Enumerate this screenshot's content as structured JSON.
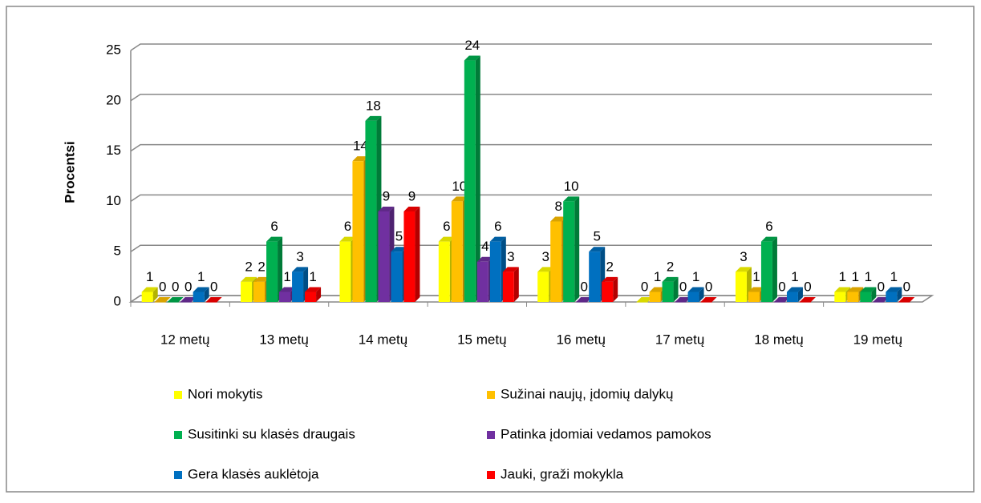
{
  "chart_data": {
    "type": "bar3d",
    "y_label": "Procentsi",
    "categories": [
      "12 metų",
      "13 metų",
      "14 metų",
      "15 metų",
      "16 metų",
      "17 metų",
      "18 metų",
      "19 metų"
    ],
    "series": [
      {
        "name": "Nori mokytis",
        "color": "#ffff00",
        "values": [
          1,
          2,
          6,
          6,
          3,
          0,
          3,
          1
        ]
      },
      {
        "name": "Sužinai naujų, įdomių dalykų",
        "color": "#ffc000",
        "values": [
          0,
          2,
          14,
          10,
          8,
          1,
          1,
          1
        ]
      },
      {
        "name": "Susitinki su klasės draugais",
        "color": "#00b050",
        "values": [
          0,
          6,
          18,
          24,
          10,
          2,
          6,
          1
        ]
      },
      {
        "name": "Patinka įdomiai vedamos pamokos",
        "color": "#7030a0",
        "values": [
          0,
          1,
          9,
          4,
          0,
          0,
          0,
          0
        ]
      },
      {
        "name": "Gera klasės auklėtoja",
        "color": "#0070c0",
        "values": [
          1,
          3,
          5,
          6,
          5,
          1,
          1,
          1
        ]
      },
      {
        "name": "Jauki, graži mokykla",
        "color": "#ff0000",
        "values": [
          0,
          1,
          9,
          3,
          2,
          0,
          0,
          0
        ]
      }
    ],
    "ylim": [
      0,
      25
    ],
    "yticks": [
      0,
      5,
      10,
      15,
      20,
      25
    ],
    "grid": true
  }
}
